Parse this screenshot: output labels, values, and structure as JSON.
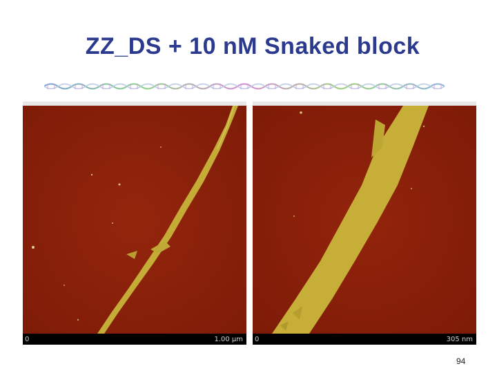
{
  "slide": {
    "title": "ZZ_DS + 10 nM Snaked block",
    "page_number": "94"
  },
  "images": {
    "left": {
      "scale_min": "0",
      "scale_max": "1.00 µm"
    },
    "right": {
      "scale_min": "0",
      "scale_max": "305 nm"
    }
  },
  "colors": {
    "title": "#2b3a8f",
    "afm_background": "#8a1f0a",
    "afm_feature": "#c8b23a"
  },
  "icons": {
    "banner": "dna-helix-banner-icon"
  }
}
